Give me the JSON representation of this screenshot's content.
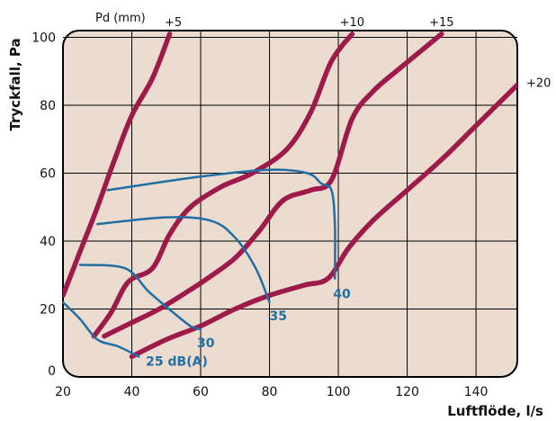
{
  "chart_data": {
    "type": "line",
    "xlabel": "Luftflöde, l/s",
    "ylabel": "Tryckfall, Pa",
    "xlim": [
      20,
      152
    ],
    "ylim": [
      0,
      102
    ],
    "x_ticks": [
      "20",
      "40",
      "60",
      "80",
      "100",
      "120",
      "140"
    ],
    "y_ticks": [
      "0",
      "20",
      "40",
      "60",
      "80",
      "100"
    ],
    "grid": true,
    "background_color": "#ecdccf",
    "pressure_drop_color": "#9e1a4a",
    "sound_level_color": "#1f6fa6",
    "pd_header": "Pd (mm)",
    "pressure_drop_curves": [
      {
        "label": "+5",
        "points": [
          [
            20,
            24
          ],
          [
            25,
            37
          ],
          [
            30,
            50
          ],
          [
            35,
            64
          ],
          [
            40,
            77
          ],
          [
            46,
            88
          ],
          [
            51,
            101
          ]
        ]
      },
      {
        "label": "+10",
        "points": [
          [
            29,
            12
          ],
          [
            34,
            19
          ],
          [
            39,
            28
          ],
          [
            46,
            32
          ],
          [
            51,
            42
          ],
          [
            57,
            50
          ],
          [
            66,
            56
          ],
          [
            75,
            60
          ],
          [
            85,
            67
          ],
          [
            92,
            78
          ],
          [
            98,
            93
          ],
          [
            104,
            101
          ]
        ]
      },
      {
        "label": "+15",
        "points": [
          [
            32,
            12
          ],
          [
            40,
            16
          ],
          [
            48,
            20
          ],
          [
            56,
            25
          ],
          [
            62,
            29
          ],
          [
            70,
            35
          ],
          [
            77,
            43
          ],
          [
            84,
            52
          ],
          [
            92,
            55
          ],
          [
            98,
            58
          ],
          [
            104,
            76
          ],
          [
            110,
            84
          ],
          [
            118,
            91
          ],
          [
            130,
            101
          ]
        ]
      },
      {
        "label": "+20",
        "points": [
          [
            40,
            6
          ],
          [
            50,
            11
          ],
          [
            60,
            15
          ],
          [
            70,
            20
          ],
          [
            80,
            24
          ],
          [
            90,
            27
          ],
          [
            97,
            29
          ],
          [
            103,
            38
          ],
          [
            110,
            46
          ],
          [
            120,
            55
          ],
          [
            130,
            64
          ],
          [
            140,
            74
          ],
          [
            152,
            86
          ]
        ]
      }
    ],
    "sound_level_curves": [
      {
        "label": "25 dB(A)",
        "points": [
          [
            20,
            22
          ],
          [
            25,
            17
          ],
          [
            30,
            11
          ],
          [
            36,
            9
          ],
          [
            42,
            6
          ]
        ]
      },
      {
        "label": "30",
        "points": [
          [
            25,
            33
          ],
          [
            38,
            32
          ],
          [
            45,
            25
          ],
          [
            52,
            19
          ],
          [
            57,
            15
          ],
          [
            60,
            14
          ]
        ]
      },
      {
        "label": "35",
        "points": [
          [
            30,
            45
          ],
          [
            50,
            47
          ],
          [
            63,
            46
          ],
          [
            70,
            41
          ],
          [
            76,
            32
          ],
          [
            80,
            22
          ]
        ]
      },
      {
        "label": "40",
        "points": [
          [
            33,
            55
          ],
          [
            60,
            59
          ],
          [
            80,
            61
          ],
          [
            91,
            60
          ],
          [
            95,
            57
          ],
          [
            98,
            55
          ],
          [
            99,
            45
          ],
          [
            99,
            29
          ]
        ]
      }
    ]
  }
}
